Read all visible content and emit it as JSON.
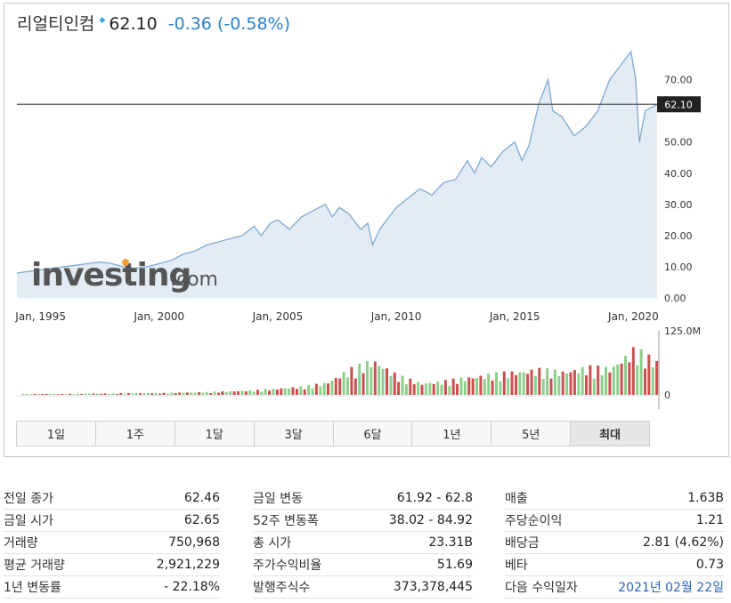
{
  "header": {
    "name": "리얼티인컴",
    "price": "62.10",
    "change": "-0.36",
    "change_pct": "(-0.58%)"
  },
  "watermark": {
    "brand": "investing",
    "suffix": ".com"
  },
  "current_price_label": "62.10",
  "chart_data": {
    "type": "area",
    "x_tick_labels": [
      "Jan, 1995",
      "Jan, 2000",
      "Jan, 2005",
      "Jan, 2010",
      "Jan, 2015",
      "Jan, 2020"
    ],
    "x_ticks": [
      1995,
      2000,
      2005,
      2010,
      2015,
      2020
    ],
    "y_tick_labels": [
      "0.00",
      "10.00",
      "20.00",
      "30.00",
      "40.00",
      "50.00",
      "60.00",
      "70.00"
    ],
    "y_ticks": [
      0,
      10,
      20,
      30,
      40,
      50,
      60,
      70
    ],
    "ylim": [
      0,
      83
    ],
    "xlim": [
      1994,
      2021
    ],
    "current_price": 62.1,
    "price_series": {
      "x": [
        1994.0,
        1994.5,
        1995.0,
        1995.5,
        1996.0,
        1996.5,
        1997.0,
        1997.5,
        1998.0,
        1998.5,
        1999.0,
        1999.5,
        2000.0,
        2000.5,
        2001.0,
        2001.5,
        2002.0,
        2002.5,
        2003.0,
        2003.5,
        2004.0,
        2004.3,
        2004.7,
        2005.0,
        2005.5,
        2006.0,
        2006.5,
        2007.0,
        2007.3,
        2007.6,
        2008.0,
        2008.5,
        2008.8,
        2009.0,
        2009.3,
        2009.7,
        2010.0,
        2010.5,
        2011.0,
        2011.5,
        2012.0,
        2012.5,
        2013.0,
        2013.3,
        2013.6,
        2014.0,
        2014.5,
        2015.0,
        2015.3,
        2015.6,
        2016.0,
        2016.4,
        2016.6,
        2017.0,
        2017.5,
        2018.0,
        2018.5,
        2019.0,
        2019.5,
        2019.9,
        2020.1,
        2020.25,
        2020.5,
        2021.0
      ],
      "values": [
        8,
        8.5,
        9,
        9.5,
        10,
        10.5,
        11,
        11.5,
        11,
        10,
        9.5,
        10,
        11,
        12,
        14,
        15,
        17,
        18,
        19,
        20,
        23,
        20,
        24,
        25,
        22,
        26,
        28,
        30,
        26,
        29,
        27,
        22,
        24,
        17,
        22,
        26,
        29,
        32,
        35,
        33,
        37,
        38,
        44,
        40,
        45,
        42,
        47,
        50,
        44,
        49,
        62,
        70,
        60,
        58,
        52,
        55,
        60,
        70,
        75,
        79,
        70,
        50,
        60,
        62.1
      ]
    },
    "volume_axis_labels": [
      "125.0M",
      "0"
    ],
    "volume_ylim": [
      0,
      125
    ],
    "volume_unit": "M",
    "volume_series": {
      "x": [
        1995,
        1996,
        1997,
        1998,
        1999,
        2000,
        2001,
        2002,
        2003,
        2004,
        2005,
        2006,
        2007,
        2008,
        2009,
        2010,
        2011,
        2012,
        2013,
        2014,
        2015,
        2016,
        2017,
        2018,
        2019,
        2020,
        2021
      ],
      "values": [
        2,
        2,
        3,
        3,
        4,
        4,
        5,
        6,
        8,
        10,
        14,
        18,
        26,
        55,
        75,
        42,
        25,
        30,
        38,
        45,
        50,
        55,
        50,
        60,
        58,
        100,
        70
      ]
    }
  },
  "tabs": [
    "1일",
    "1주",
    "1달",
    "3달",
    "6달",
    "1년",
    "5년",
    "최대"
  ],
  "active_tab": "최대",
  "stats": {
    "col1": [
      {
        "label": "전일 종가",
        "value": "62.46"
      },
      {
        "label": "금일 시가",
        "value": "62.65"
      },
      {
        "label": "거래량",
        "value": "750,968"
      },
      {
        "label": "평균 거래량",
        "value": "2,921,229"
      },
      {
        "label": "1년 변동률",
        "value": "- 22.18%"
      }
    ],
    "col2": [
      {
        "label": "금일 변동",
        "value": "61.92 - 62.8"
      },
      {
        "label": "52주 변동폭",
        "value": "38.02 - 84.92"
      },
      {
        "label": "총 시가",
        "value": "23.31B"
      },
      {
        "label": "주가수익비율",
        "value": "51.69"
      },
      {
        "label": "발행주식수",
        "value": "373,378,445"
      }
    ],
    "col3": [
      {
        "label": "매출",
        "value": "1.63B"
      },
      {
        "label": "주당순이익",
        "value": "1.21"
      },
      {
        "label": "배당금",
        "value": "2.81 (4.62%)"
      },
      {
        "label": "베타",
        "value": "0.73"
      },
      {
        "label": "다음 수익일자",
        "value": "2021년 02월 22일"
      }
    ]
  },
  "colors": {
    "line": "#7fa8d0",
    "area": "#e3ecf5",
    "vol_up": "#8fcf8a",
    "vol_down": "#c9504f",
    "price_line": "#555555",
    "change": "#2a80c9"
  }
}
